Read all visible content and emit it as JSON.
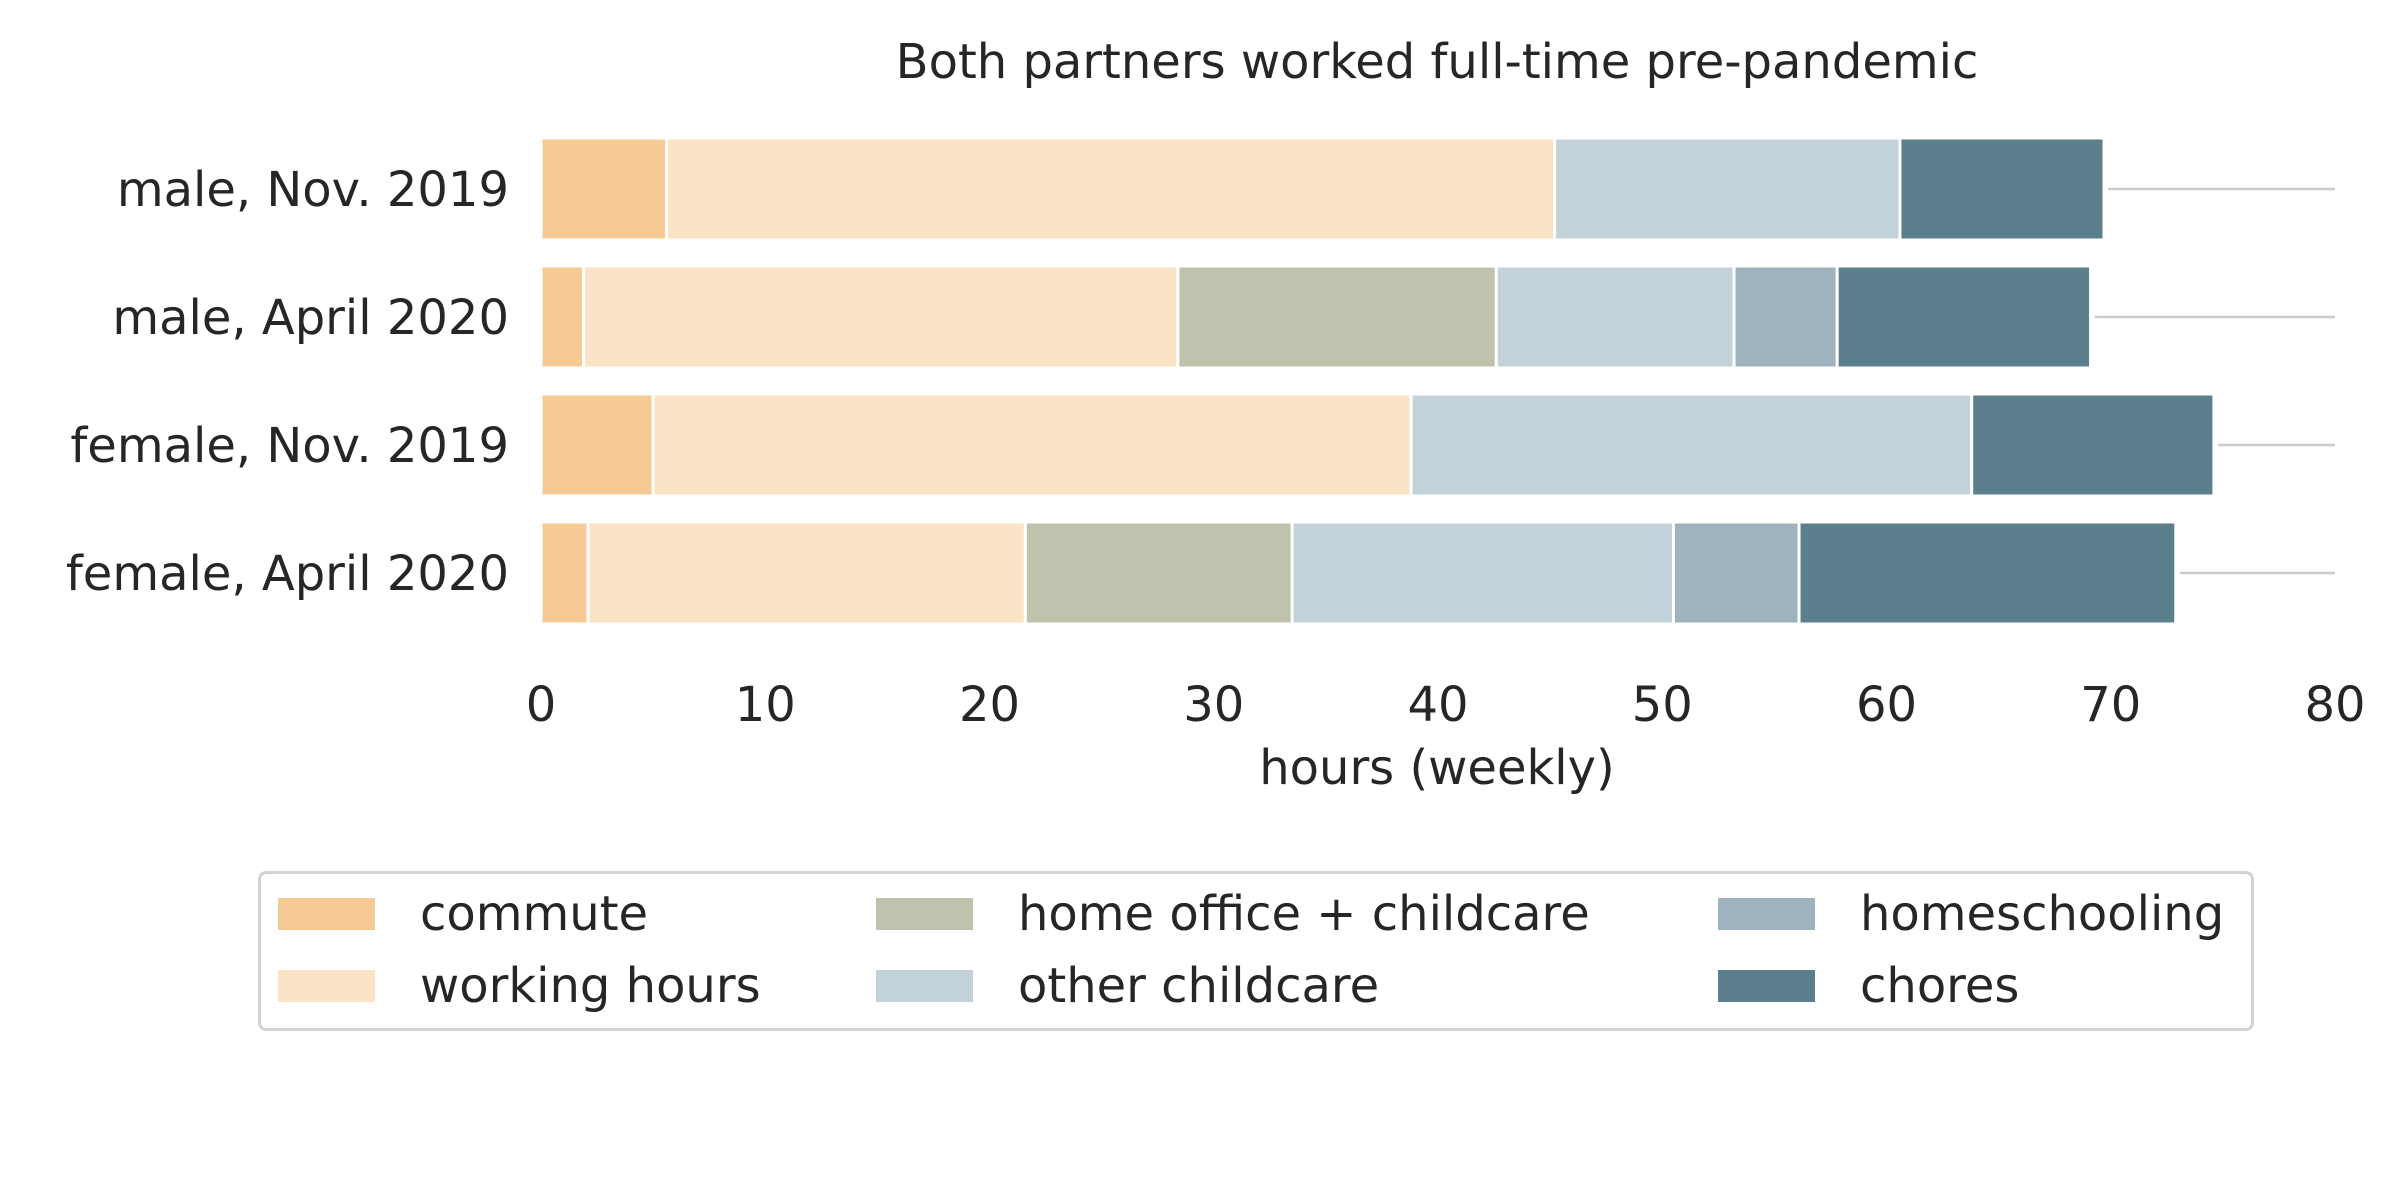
{
  "chart_data": {
    "type": "bar",
    "orientation": "horizontal",
    "stacked": true,
    "title": "Both partners worked full-time pre-pandemic",
    "xlabel": "hours (weekly)",
    "ylabel": "",
    "xlim": [
      0,
      80
    ],
    "xticks": [
      0,
      10,
      20,
      30,
      40,
      50,
      60,
      70,
      80
    ],
    "grid": "horizontal lines right of bars",
    "legend_position": "bottom",
    "categories": [
      "male, Nov. 2019",
      "male, April 2020",
      "female, Nov. 2019",
      "female, April 2020"
    ],
    "series": [
      {
        "name": "commute",
        "color": "#f5ca94",
        "values": [
          5.6,
          1.9,
          5.0,
          2.1
        ]
      },
      {
        "name": "working hours",
        "color": "#fbe4c6",
        "values": [
          39.6,
          26.5,
          33.8,
          19.5
        ]
      },
      {
        "name": "home office + childcare",
        "color": "#bfc3ad",
        "values": [
          0,
          14.2,
          0,
          11.9
        ]
      },
      {
        "name": "other childcare",
        "color": "#c3d2d9",
        "values": [
          15.4,
          10.6,
          25.0,
          17.0
        ]
      },
      {
        "name": "homeschooling",
        "color": "#9eb3be",
        "values": [
          0,
          4.6,
          0,
          5.6
        ]
      },
      {
        "name": "chores",
        "color": "#5c7f8d",
        "values": [
          9.1,
          11.3,
          10.8,
          16.8
        ]
      }
    ]
  }
}
